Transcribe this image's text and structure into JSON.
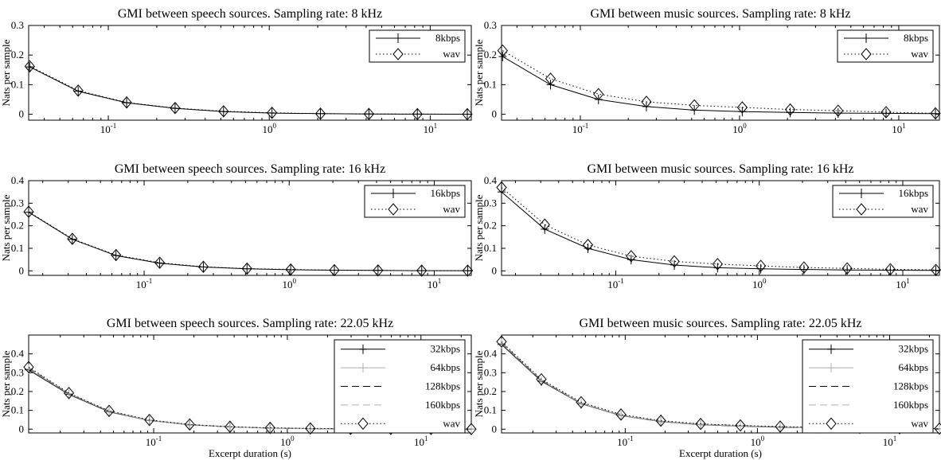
{
  "figure": {
    "xlabel": "Excerpt duration (s)"
  },
  "chart_data": [
    {
      "type": "line",
      "title": "GMI between speech sources. Sampling rate: 8 kHz",
      "xlabel": "",
      "ylabel": "Nats per sample",
      "xscale": "log",
      "xlim": [
        0.032,
        18
      ],
      "ylim": [
        -0.02,
        0.3
      ],
      "yticks": [
        "0",
        "0.1",
        "0.2",
        "0.3"
      ],
      "xticks": [
        "10^-1",
        "10^0",
        "10^1"
      ],
      "legend_position": "top-right",
      "grid": false,
      "x": [
        0.0325,
        0.065,
        0.13,
        0.26,
        0.52,
        1.04,
        2.08,
        4.16,
        8.32,
        17
      ],
      "series": [
        {
          "name": "8kbps",
          "marker": "plus",
          "style": "solid",
          "color": "#000000",
          "values": [
            0.16,
            0.078,
            0.039,
            0.02,
            0.009,
            0.004,
            0.002,
            0.001,
            0.0005,
            0.0003
          ]
        },
        {
          "name": "wav",
          "marker": "diamond",
          "style": "dotted",
          "color": "#000000",
          "values": [
            0.162,
            0.08,
            0.04,
            0.021,
            0.01,
            0.005,
            0.002,
            0.001,
            0.0005,
            0.0003
          ]
        }
      ]
    },
    {
      "type": "line",
      "title": "GMI between music sources. Sampling rate: 8 kHz",
      "xlabel": "",
      "ylabel": "Nats per sample",
      "xscale": "log",
      "xlim": [
        0.032,
        18
      ],
      "ylim": [
        -0.02,
        0.3
      ],
      "yticks": [
        "0",
        "0.1",
        "0.2",
        "0.3"
      ],
      "xticks": [
        "10^-1",
        "10^0",
        "10^1"
      ],
      "legend_position": "top-right",
      "grid": false,
      "x": [
        0.0325,
        0.065,
        0.13,
        0.26,
        0.52,
        1.04,
        2.08,
        4.16,
        8.32,
        17
      ],
      "series": [
        {
          "name": "8kbps",
          "marker": "plus",
          "style": "solid",
          "color": "#000000",
          "values": [
            0.195,
            0.1,
            0.05,
            0.026,
            0.014,
            0.009,
            0.006,
            0.004,
            0.003,
            0.002
          ]
        },
        {
          "name": "wav",
          "marker": "diamond",
          "style": "dotted",
          "color": "#000000",
          "values": [
            0.215,
            0.12,
            0.068,
            0.042,
            0.03,
            0.023,
            0.016,
            0.012,
            0.007,
            0.003
          ]
        }
      ]
    },
    {
      "type": "line",
      "title": "GMI between speech sources. Sampling rate: 16 kHz",
      "xlabel": "",
      "ylabel": "Nats per sample",
      "xscale": "log",
      "xlim": [
        0.016,
        18
      ],
      "ylim": [
        -0.02,
        0.4
      ],
      "yticks": [
        "0",
        "0.1",
        "0.2",
        "0.3",
        "0.4"
      ],
      "xticks": [
        "10^-1",
        "10^0",
        "10^1"
      ],
      "legend_position": "top-right",
      "grid": false,
      "x": [
        0.016,
        0.032,
        0.064,
        0.128,
        0.256,
        0.512,
        1.024,
        2.048,
        4.096,
        8.192,
        17
      ],
      "series": [
        {
          "name": "16kbps",
          "marker": "plus",
          "style": "solid",
          "color": "#000000",
          "values": [
            0.26,
            0.14,
            0.068,
            0.034,
            0.017,
            0.009,
            0.005,
            0.003,
            0.002,
            0.001,
            0.001
          ]
        },
        {
          "name": "wav",
          "marker": "diamond",
          "style": "dotted",
          "color": "#000000",
          "values": [
            0.262,
            0.142,
            0.07,
            0.036,
            0.018,
            0.01,
            0.006,
            0.003,
            0.002,
            0.001,
            0.001
          ]
        }
      ]
    },
    {
      "type": "line",
      "title": "GMI between music sources. Sampling rate: 16 kHz",
      "xlabel": "",
      "ylabel": "Nats per sample",
      "xscale": "log",
      "xlim": [
        0.016,
        18
      ],
      "ylim": [
        -0.02,
        0.4
      ],
      "yticks": [
        "0",
        "0.1",
        "0.2",
        "0.3",
        "0.4"
      ],
      "xticks": [
        "10^-1",
        "10^0",
        "10^1"
      ],
      "legend_position": "top-right",
      "grid": false,
      "x": [
        0.016,
        0.032,
        0.064,
        0.128,
        0.256,
        0.512,
        1.024,
        2.048,
        4.096,
        8.192,
        17
      ],
      "series": [
        {
          "name": "16kbps",
          "marker": "plus",
          "style": "solid",
          "color": "#000000",
          "values": [
            0.35,
            0.185,
            0.1,
            0.05,
            0.026,
            0.014,
            0.009,
            0.006,
            0.004,
            0.003,
            0.002
          ]
        },
        {
          "name": "wav",
          "marker": "diamond",
          "style": "dotted",
          "color": "#000000",
          "values": [
            0.37,
            0.205,
            0.115,
            0.065,
            0.042,
            0.03,
            0.022,
            0.015,
            0.011,
            0.007,
            0.004
          ]
        }
      ]
    },
    {
      "type": "line",
      "title": "GMI between speech sources. Sampling rate: 22.05 kHz",
      "xlabel": "Excerpt duration (s)",
      "ylabel": "Nats per sample",
      "xscale": "log",
      "xlim": [
        0.0116,
        23.8
      ],
      "ylim": [
        -0.02,
        0.5
      ],
      "yticks": [
        "0",
        "0.1",
        "0.2",
        "0.3",
        "0.4"
      ],
      "xticks": [
        "10^-1",
        "10^0",
        "10^1"
      ],
      "legend_position": "top-right",
      "grid": false,
      "x": [
        0.0116,
        0.0232,
        0.0464,
        0.0929,
        0.186,
        0.372,
        0.743,
        1.486,
        2.972,
        5.944,
        11.89,
        23.8
      ],
      "series": [
        {
          "name": "32kbps",
          "marker": "plus",
          "style": "solid",
          "color": "#000000",
          "values": [
            0.315,
            0.185,
            0.092,
            0.046,
            0.023,
            0.012,
            0.006,
            0.003,
            0.002,
            0.001,
            0.001,
            0.0005
          ]
        },
        {
          "name": "64kbps",
          "marker": "plus",
          "style": "solid",
          "color": "#b0b0b0",
          "values": [
            0.32,
            0.188,
            0.094,
            0.047,
            0.024,
            0.012,
            0.006,
            0.003,
            0.002,
            0.001,
            0.001,
            0.0005
          ]
        },
        {
          "name": "128kbps",
          "marker": "none",
          "style": "dashed",
          "color": "#000000",
          "values": [
            0.325,
            0.19,
            0.095,
            0.048,
            0.024,
            0.012,
            0.006,
            0.003,
            0.002,
            0.001,
            0.001,
            0.0005
          ]
        },
        {
          "name": "160kbps",
          "marker": "none",
          "style": "dashed",
          "color": "#b0b0b0",
          "values": [
            0.327,
            0.191,
            0.096,
            0.048,
            0.024,
            0.012,
            0.006,
            0.003,
            0.002,
            0.001,
            0.001,
            0.0005
          ]
        },
        {
          "name": "wav",
          "marker": "diamond",
          "style": "dotted",
          "color": "#000000",
          "values": [
            0.33,
            0.192,
            0.097,
            0.049,
            0.025,
            0.013,
            0.007,
            0.004,
            0.002,
            0.001,
            0.001,
            0.0005
          ]
        }
      ]
    },
    {
      "type": "line",
      "title": "GMI between music sources. Sampling rate: 22.05 kHz",
      "xlabel": "Excerpt duration (s)",
      "ylabel": "Nats per sample",
      "xscale": "log",
      "xlim": [
        0.0116,
        23.8
      ],
      "ylim": [
        -0.02,
        0.5
      ],
      "yticks": [
        "0",
        "0.1",
        "0.2",
        "0.3",
        "0.4"
      ],
      "xticks": [
        "10^-1",
        "10^0",
        "10^1"
      ],
      "legend_position": "top-right",
      "grid": false,
      "x": [
        0.0116,
        0.0232,
        0.0464,
        0.0929,
        0.186,
        0.372,
        0.743,
        1.486,
        2.972,
        5.944,
        11.89,
        23.8
      ],
      "series": [
        {
          "name": "32kbps",
          "marker": "plus",
          "style": "solid",
          "color": "#000000",
          "values": [
            0.45,
            0.255,
            0.135,
            0.072,
            0.04,
            0.024,
            0.016,
            0.011,
            0.008,
            0.006,
            0.004,
            0.003
          ]
        },
        {
          "name": "64kbps",
          "marker": "plus",
          "style": "solid",
          "color": "#b0b0b0",
          "values": [
            0.455,
            0.258,
            0.137,
            0.073,
            0.041,
            0.025,
            0.017,
            0.012,
            0.008,
            0.006,
            0.004,
            0.003
          ]
        },
        {
          "name": "128kbps",
          "marker": "none",
          "style": "dashed",
          "color": "#000000",
          "values": [
            0.46,
            0.26,
            0.139,
            0.075,
            0.042,
            0.026,
            0.018,
            0.012,
            0.009,
            0.006,
            0.004,
            0.003
          ]
        },
        {
          "name": "160kbps",
          "marker": "none",
          "style": "dashed",
          "color": "#b0b0b0",
          "values": [
            0.462,
            0.262,
            0.14,
            0.075,
            0.043,
            0.026,
            0.018,
            0.013,
            0.009,
            0.006,
            0.004,
            0.003
          ]
        },
        {
          "name": "wav",
          "marker": "diamond",
          "style": "dotted",
          "color": "#000000",
          "values": [
            0.465,
            0.265,
            0.143,
            0.078,
            0.045,
            0.028,
            0.02,
            0.014,
            0.01,
            0.007,
            0.005,
            0.003
          ]
        }
      ]
    }
  ]
}
